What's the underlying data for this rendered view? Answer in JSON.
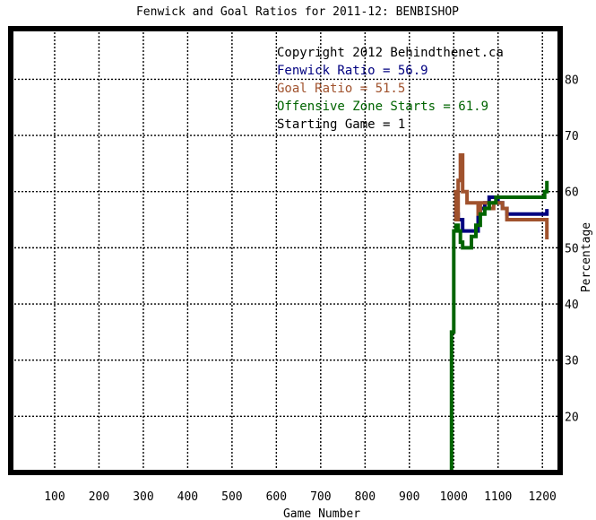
{
  "chart_data": {
    "type": "line",
    "title": "Fenwick and Goal Ratios for 2011-12: BENBISHOP",
    "xlabel": "Game Number",
    "ylabel": "Percentage",
    "xlim": [
      1,
      1240
    ],
    "ylim": [
      10,
      89
    ],
    "x_ticks": [
      100,
      200,
      300,
      400,
      500,
      600,
      700,
      800,
      900,
      1000,
      1100,
      1200
    ],
    "y_ticks": [
      20,
      30,
      40,
      50,
      60,
      70,
      80
    ],
    "grid": true,
    "legend_position": "top-right",
    "annotations": [
      {
        "text": "Copyright 2012 Behindthenet.ca",
        "color": "#000000"
      },
      {
        "text": "Fenwick Ratio = 56.9",
        "color": "#000080"
      },
      {
        "text": "Goal Ratio = 51.5",
        "color": "#a0522d"
      },
      {
        "text": "Offensive Zone Starts = 61.9",
        "color": "#006400"
      },
      {
        "text": "Starting Game = 1",
        "color": "#000000"
      }
    ],
    "series": [
      {
        "color": "#000080",
        "points": [
          [
            1000,
            56
          ],
          [
            1010,
            55
          ],
          [
            1020,
            53
          ],
          [
            1050,
            53
          ],
          [
            1055,
            56
          ],
          [
            1060,
            57
          ],
          [
            1070,
            58
          ],
          [
            1080,
            59
          ],
          [
            1100,
            58
          ],
          [
            1110,
            57
          ],
          [
            1120,
            56
          ],
          [
            1150,
            56
          ],
          [
            1210,
            56.9
          ]
        ]
      },
      {
        "color": "#a0522d",
        "points": [
          [
            1000,
            60
          ],
          [
            1005,
            55
          ],
          [
            1010,
            62
          ],
          [
            1015,
            66.5
          ],
          [
            1020,
            60
          ],
          [
            1030,
            58
          ],
          [
            1050,
            58
          ],
          [
            1055,
            56
          ],
          [
            1060,
            58
          ],
          [
            1070,
            58
          ],
          [
            1080,
            57
          ],
          [
            1090,
            58
          ],
          [
            1110,
            57
          ],
          [
            1120,
            55
          ],
          [
            1205,
            55
          ],
          [
            1210,
            51.5
          ]
        ]
      },
      {
        "color": "#006400",
        "points": [
          [
            990,
            10
          ],
          [
            995,
            35
          ],
          [
            1000,
            53
          ],
          [
            1005,
            54
          ],
          [
            1010,
            53
          ],
          [
            1015,
            51
          ],
          [
            1020,
            50
          ],
          [
            1030,
            50
          ],
          [
            1040,
            52
          ],
          [
            1050,
            54
          ],
          [
            1060,
            56
          ],
          [
            1070,
            57
          ],
          [
            1080,
            58
          ],
          [
            1095,
            59
          ],
          [
            1140,
            59
          ],
          [
            1175,
            59
          ],
          [
            1205,
            60
          ],
          [
            1210,
            61.9
          ]
        ]
      }
    ]
  }
}
